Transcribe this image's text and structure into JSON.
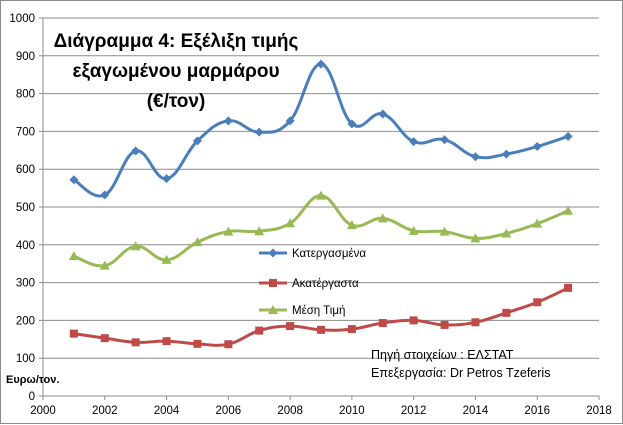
{
  "chart_data": {
    "type": "line",
    "title_lines": [
      "Διάγραμμα 4: Εξέλιξη τιμής",
      "εξαγωμένου μαρμάρου",
      "(€/τον)"
    ],
    "ylabel": "Ευρω/τον.",
    "xlabel": "",
    "xlim": [
      2000,
      2018
    ],
    "ylim": [
      0,
      1000
    ],
    "x_ticks": [
      "2000",
      "2002",
      "2004",
      "2006",
      "2008",
      "2010",
      "2012",
      "2014",
      "2016",
      "2018"
    ],
    "y_ticks": [
      "0",
      "100",
      "200",
      "300",
      "400",
      "500",
      "600",
      "700",
      "800",
      "900",
      "1000"
    ],
    "grid": "horizontal",
    "legend_position": "center",
    "x": [
      2001,
      2002,
      2003,
      2004,
      2005,
      2006,
      2007,
      2008,
      2009,
      2010,
      2011,
      2012,
      2013,
      2014,
      2015,
      2016,
      2017
    ],
    "series": [
      {
        "name": "Κατεργασμένα",
        "color": "#4a7ebb",
        "marker": "diamond",
        "values": [
          572,
          532,
          648,
          575,
          675,
          728,
          698,
          728,
          878,
          720,
          746,
          673,
          678,
          633,
          640,
          660,
          687
        ]
      },
      {
        "name": "Ακατέργαστα",
        "color": "#be4b48",
        "marker": "square",
        "values": [
          165,
          153,
          142,
          145,
          138,
          137,
          173,
          185,
          175,
          177,
          193,
          200,
          188,
          195,
          220,
          248,
          286
        ]
      },
      {
        "name": "Μέση Τιμή",
        "color": "#98b954",
        "marker": "triangle",
        "values": [
          370,
          345,
          396,
          360,
          407,
          435,
          436,
          457,
          530,
          452,
          470,
          437,
          435,
          417,
          430,
          456,
          490
        ]
      }
    ],
    "annotations": [
      "Πηγή στοιχείων : ΕΛΣΤΑΤ",
      "Επεξεργασία: Dr Petros Tzeferis"
    ]
  }
}
